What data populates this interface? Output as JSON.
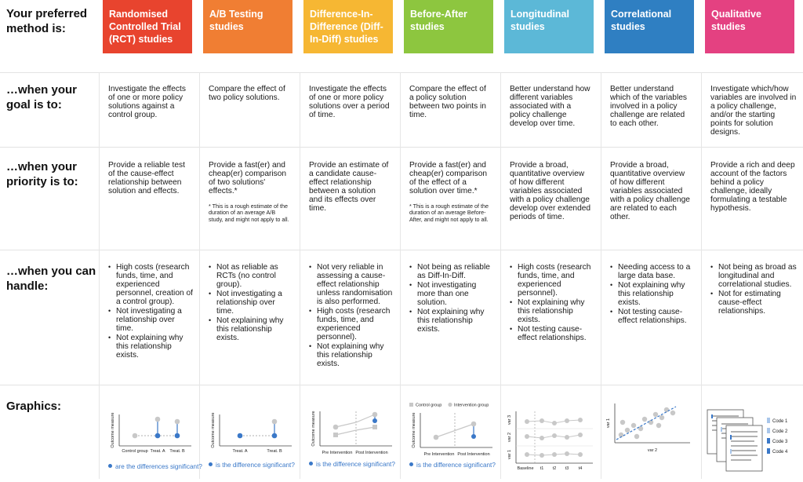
{
  "row_labels": {
    "method": "Your preferred method is:",
    "goal": "…when your goal is to:",
    "priority": "…when your priority is to:",
    "handle": "…when you can handle:",
    "graphics": "Graphics:"
  },
  "columns": [
    {
      "title": "Randomised Controlled Trial (RCT) studies",
      "color": "#e8442e",
      "goal": "Investigate the effects of one or more policy solutions against a control group.",
      "priority": "Provide a reliable test of the cause-effect relationship between solution and effects.",
      "note": "",
      "handle": [
        "High costs (research funds, time, and experienced personnel, creation of a control group).",
        "Not investigating a relationship over time.",
        "Not explaining why this relationship exists."
      ]
    },
    {
      "title": "A/B Testing studies",
      "color": "#f07e33",
      "goal": "Compare the effect of two policy solutions.",
      "priority": "Provide a fast(er) and cheap(er) comparison of two solutions' effects.*",
      "note": "* This is a rough estimate of the duration of an average A/B study, and might not apply to all.",
      "handle": [
        "Not as reliable as RCTs (no control group).",
        "Not investigating a relationship over time.",
        "Not explaining why this relationship exists."
      ]
    },
    {
      "title": "Difference-In-Difference (Diff-In-Diff) studies",
      "color": "#f6b733",
      "goal": "Investigate the effects of one or more policy solutions over a period of time.",
      "priority": "Provide an estimate of a candidate cause-effect relationship between a solution and its effects over time.",
      "note": "",
      "handle": [
        "Not very reliable in assessing a cause-effect relationship unless randomisation is also performed.",
        "High costs (research funds, time, and experienced personnel).",
        "Not explaining why this relationship exists."
      ]
    },
    {
      "title": "Before-After studies",
      "color": "#8dc63f",
      "goal": "Compare the effect of a policy solution between two points in time.",
      "priority": "Provide a fast(er) and cheap(er) comparison of the effect of a solution over time.*",
      "note": "* This is a rough estimate of the duration of an average Before-After, and might not apply to all.",
      "handle": [
        "Not being as reliable as Diff-In-Diff.",
        "Not investigating more than one solution.",
        "Not explaining why this relationship exists."
      ]
    },
    {
      "title": "Longitudinal studies",
      "color": "#5cb8d7",
      "goal": "Better understand how different variables associated with a policy challenge develop over time.",
      "priority": "Provide a broad, quantitative overview of how different variables associated with a policy challenge develop over extended periods of time.",
      "note": "",
      "handle": [
        "High costs (research funds, time, and experienced personnel).",
        "Not explaining why this relationship exists.",
        "Not testing cause-effect relationships."
      ]
    },
    {
      "title": "Correlational studies",
      "color": "#2f7fc2",
      "goal": "Better understand which of the variables involved in a policy challenge are related to each other.",
      "priority": "Provide a broad, quantitative overview of how different variables associated with a policy challenge are related to each other.",
      "note": "",
      "handle": [
        "Needing access to a large data base.",
        "Not explaining why this relationship exists.",
        "Not testing cause-effect relationships."
      ]
    },
    {
      "title": "Qualitative studies",
      "color": "#e44181",
      "goal": "Investigate which/how variables are involved in a policy challenge, and/or the starting points for solution designs.",
      "priority": "Provide a rich and deep account of the factors behind a policy challenge, ideally formulating a testable hypothesis.",
      "note": "",
      "handle": [
        "Not being as broad as longitudinal and correlational studies.",
        "Not for estimating cause-effect relationships."
      ]
    }
  ],
  "graphics": {
    "outcome_label": "Outcome measure",
    "rct": {
      "xlabels": [
        "Control group",
        "Treat. A",
        "Treat. B"
      ],
      "caption": "are the differences significant?"
    },
    "ab": {
      "xlabels": [
        "Treat. A",
        "Treat. B"
      ],
      "caption": "is the difference significant?"
    },
    "did": {
      "xlabels": [
        "Pre Intervention",
        "Post Intervention"
      ],
      "caption": "is the difference significant?"
    },
    "ba": {
      "legend": [
        "Control group",
        "Intervention group"
      ],
      "xlabels": [
        "Pre Intervention",
        "Post Intervention"
      ],
      "caption": "is the difference significant?"
    },
    "long": {
      "ylabels": [
        "var 3",
        "var 2",
        "var 1"
      ],
      "xlabels": [
        "Baseline",
        "t1",
        "t2",
        "t3",
        "t4"
      ]
    },
    "corr": {
      "xlabel": "var 2",
      "ylabel": "var 1"
    },
    "qual": {
      "codes": [
        "Code 1",
        "Code 2",
        "Code 3",
        "Code 4"
      ]
    }
  },
  "colors": {
    "grey_dot": "#c8c8c8",
    "blue": "#3a78c8",
    "light_blue": "#a9c6ea"
  }
}
